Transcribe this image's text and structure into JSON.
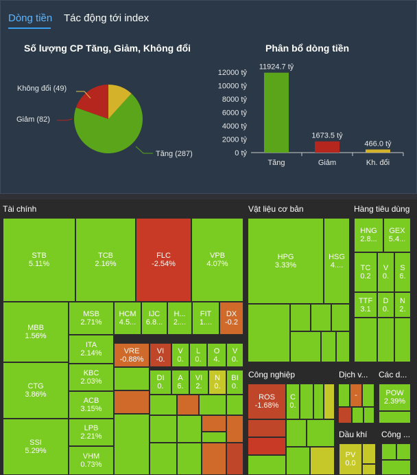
{
  "tabs": [
    {
      "label": "Dòng tiền"
    },
    {
      "label": "Tác động tới index"
    }
  ],
  "pie": {
    "title": "Số lượng CP Tăng, Giảm, Không đổi",
    "labels": {
      "up": "Tăng (287)",
      "down": "Giảm (82)",
      "flat": "Không đổi (49)"
    },
    "values": {
      "up": 287,
      "down": 82,
      "flat": 49
    },
    "colors": {
      "up": "#5aa51a",
      "down": "#b5261e",
      "flat": "#d4b22a"
    }
  },
  "chart_data": {
    "type": "bar",
    "title": "Phân bổ dòng tiền",
    "categories": [
      "Tăng",
      "Giảm",
      "Kh. đổi"
    ],
    "values": [
      11924.7,
      1673.5,
      466.0
    ],
    "value_labels": [
      "11924.7 tỷ",
      "1673.5 tỷ",
      "466.0 tỷ"
    ],
    "colors": [
      "#5aa51a",
      "#b5261e",
      "#d4b22a"
    ],
    "ylim": [
      0,
      12000
    ],
    "yticks": [
      0,
      2000,
      4000,
      6000,
      8000,
      10000,
      12000
    ],
    "ytick_labels": [
      "0 tỷ",
      "2000 tỷ",
      "4000 tỷ",
      "6000 tỷ",
      "8000 tỷ",
      "10000 tỷ",
      "12000 tỷ"
    ]
  },
  "treemap": {
    "sectors": {
      "tai_chinh": "Tài chính",
      "vat_lieu": "Vật liệu cơ bản",
      "hang_tieu_dung": "Hàng tiêu dùng",
      "cong_nghiep": "Công nghiệp",
      "dich_vu": "Dịch v...",
      "cac_d": "Các d...",
      "dau_khi": "Dầu khí",
      "cong_nghe": "Công ..."
    },
    "tiles": {
      "STB": {
        "name": "STB",
        "val": "5.11%"
      },
      "TCB": {
        "name": "TCB",
        "val": "2.16%"
      },
      "FLC": {
        "name": "FLC",
        "val": "-2.54%"
      },
      "VPB": {
        "name": "VPB",
        "val": "4.07%"
      },
      "MBB": {
        "name": "MBB",
        "val": "1.56%"
      },
      "MSB": {
        "name": "MSB",
        "val": "2.71%"
      },
      "HCM": {
        "name": "HCM",
        "val": "4.5..."
      },
      "IJC": {
        "name": "IJC",
        "val": "6.8..."
      },
      "H": {
        "name": "H...",
        "val": "2...."
      },
      "FIT": {
        "name": "FIT",
        "val": "1...."
      },
      "DX": {
        "name": "DX",
        "val": "-0.2"
      },
      "ITA": {
        "name": "ITA",
        "val": "2.14%"
      },
      "VRE": {
        "name": "VRE",
        "val": "-0.88%"
      },
      "VI1": {
        "name": "VI",
        "val": "-0."
      },
      "V1": {
        "name": "V",
        "val": "0."
      },
      "L1": {
        "name": "L",
        "val": "0."
      },
      "O1": {
        "name": "O",
        "val": "4."
      },
      "V2": {
        "name": "V",
        "val": "0."
      },
      "KBC": {
        "name": "KBC",
        "val": "2.03%"
      },
      "CTG": {
        "name": "CTG",
        "val": "3.86%"
      },
      "DI": {
        "name": "DI",
        "val": "0."
      },
      "A1": {
        "name": "A",
        "val": "6."
      },
      "VI2": {
        "name": "VI",
        "val": "2."
      },
      "N1": {
        "name": "N",
        "val": "0."
      },
      "BI": {
        "name": "BI",
        "val": "0."
      },
      "ACB": {
        "name": "ACB",
        "val": "3.15%"
      },
      "LPB": {
        "name": "LPB",
        "val": "2.21%"
      },
      "SSI": {
        "name": "SSI",
        "val": "5.29%"
      },
      "VHM": {
        "name": "VHM",
        "val": "0.73%"
      },
      "HPG": {
        "name": "HPG",
        "val": "3.33%"
      },
      "HSG": {
        "name": "HSG",
        "val": "4...."
      },
      "HNG": {
        "name": "HNG",
        "val": "2.8..."
      },
      "GEX": {
        "name": "GEX",
        "val": "5.4..."
      },
      "TC": {
        "name": "TC",
        "val": "0.2"
      },
      "V3": {
        "name": "V",
        "val": "0."
      },
      "S1": {
        "name": "S",
        "val": "6."
      },
      "TTF": {
        "name": "TTF",
        "val": "3.1"
      },
      "D1": {
        "name": "D",
        "val": "0."
      },
      "N2": {
        "name": "N",
        "val": "2."
      },
      "ROS": {
        "name": "ROS",
        "val": "-1.68%"
      },
      "C1": {
        "name": "C",
        "val": "0."
      },
      "DV1": {
        "name": "",
        "val": "-"
      },
      "POW": {
        "name": "POW",
        "val": "2.39%"
      },
      "PV": {
        "name": "PV",
        "val": "0.0"
      }
    }
  }
}
